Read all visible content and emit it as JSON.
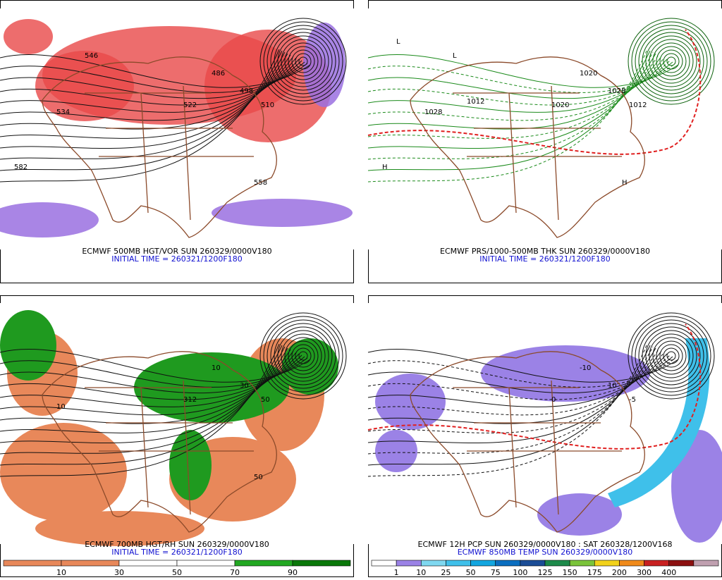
{
  "panels": [
    {
      "title": "ECMWF 500MB HGT/VOR SUN 260329/0000V180",
      "subtitle": "INITIAL TIME = 260321/1200F180",
      "labels": [
        "486",
        "498",
        "510",
        "522",
        "534",
        "558",
        "582",
        "546"
      ]
    },
    {
      "title": "ECMWF PRS/1000-500MB THK SUN 260329/0000V180",
      "subtitle": "INITIAL TIME = 260321/1200F180",
      "labels": [
        "1020",
        "1028",
        "1012",
        "1020",
        "1028",
        "H",
        "H",
        "L",
        "L",
        "1012"
      ]
    },
    {
      "title": "ECMWF 700MB HGT/RH SUN 260329/0000V180",
      "subtitle": "INITIAL TIME = 260321/1200F180",
      "labels": [
        "10",
        "30",
        "50",
        "312",
        "10",
        "50"
      ]
    },
    {
      "title": "ECMWF 12H PCP SUN 260329/0000V180 : SAT 260328/1200V168",
      "subtitle": "ECMWF 850MB TEMP SUN 260329/0000V180",
      "labels": [
        "-10",
        "10",
        "-5",
        "0"
      ]
    }
  ],
  "colorbars": [
    {
      "colors": [
        "#e8885a",
        "#e8885a",
        "#ffffff",
        "#ffffff",
        "#22a822",
        "#0a780a"
      ],
      "labels": [
        10,
        30,
        50,
        70,
        90
      ]
    },
    {
      "colors": [
        "#ffffff",
        "#9b82e6",
        "#7fd8f0",
        "#3fc0ea",
        "#12a6e0",
        "#0a6ec0",
        "#1a4c96",
        "#1c8a4a",
        "#7ac43a",
        "#f2d21a",
        "#f08a1a",
        "#c82020",
        "#8c1010",
        "#c0a0b0"
      ],
      "labels": [
        1,
        10,
        25,
        50,
        75,
        100,
        125,
        150,
        175,
        200,
        300,
        400
      ]
    }
  ]
}
